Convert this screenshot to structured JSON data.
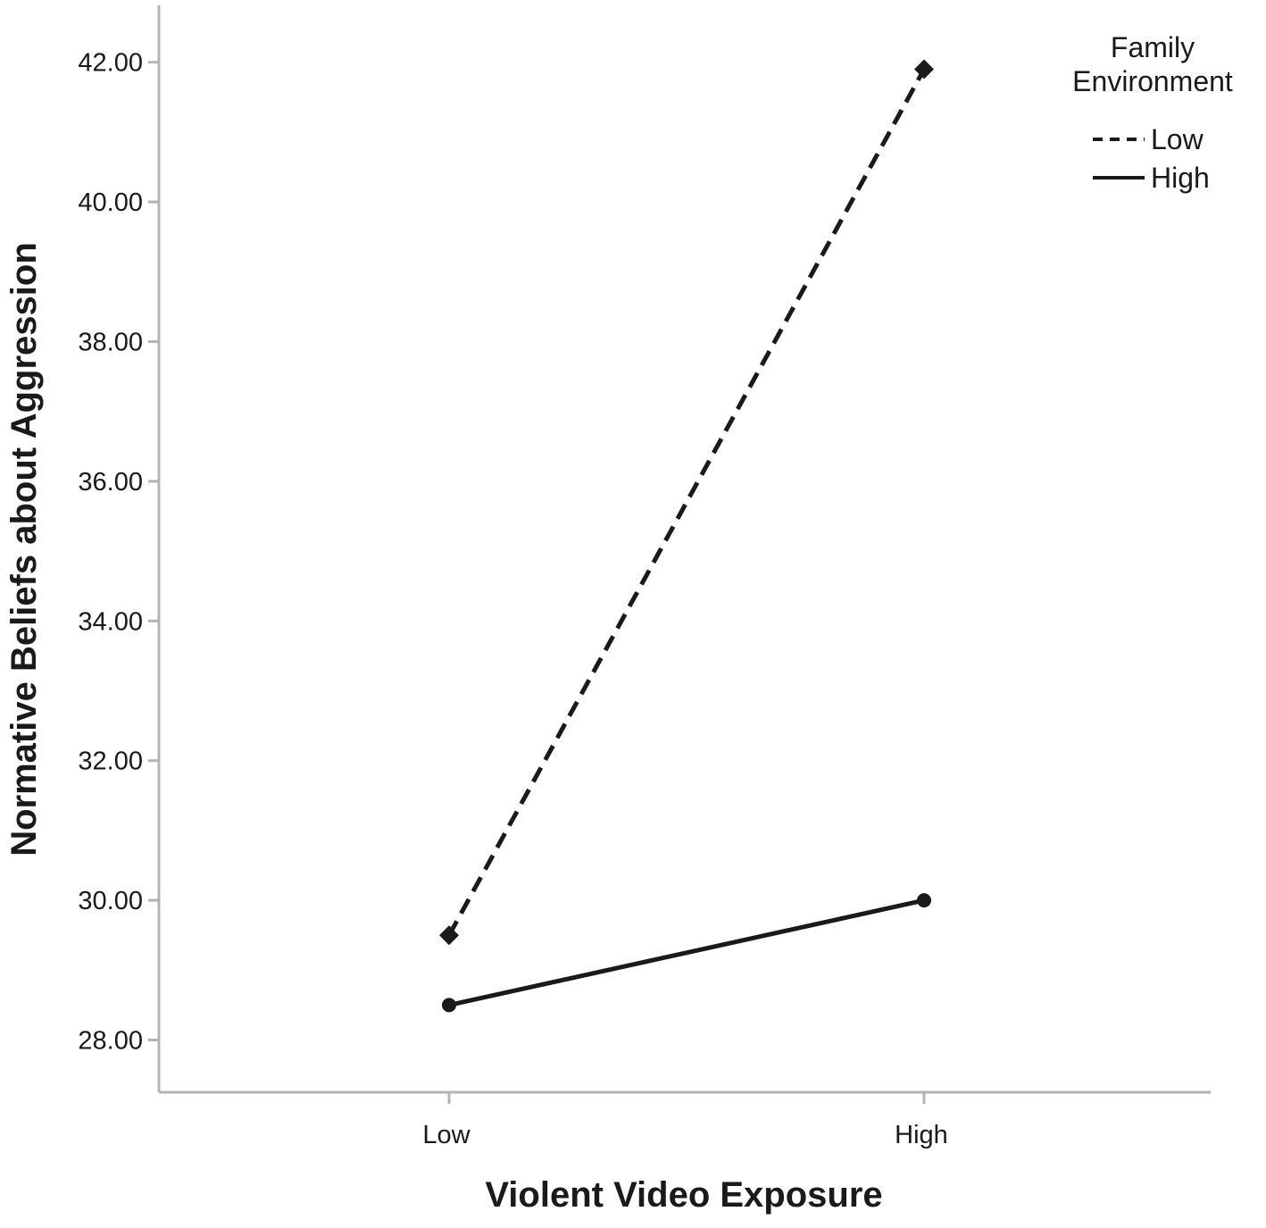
{
  "chart_data": {
    "type": "line",
    "title": "",
    "xlabel": "Violent Video Exposure",
    "ylabel": "Normative Beliefs about Aggression",
    "categories": [
      "Low",
      "High"
    ],
    "ylim": [
      27.4,
      42.8
    ],
    "yticks": [
      28,
      30,
      32,
      34,
      36,
      38,
      40,
      42
    ],
    "ytick_labels": [
      "28.00",
      "30.00",
      "32.00",
      "34.00",
      "36.00",
      "38.00",
      "40.00",
      "42.00"
    ],
    "grid": false,
    "legend": {
      "title_lines": [
        "Family",
        "Environment"
      ],
      "placement": "top-right"
    },
    "series": [
      {
        "name": "Low",
        "values": [
          29.5,
          41.9
        ],
        "line_style": "dashed",
        "marker": "diamond",
        "color": "#1a1a1a"
      },
      {
        "name": "High",
        "values": [
          28.5,
          30.0
        ],
        "line_style": "solid",
        "marker": "circle",
        "color": "#1a1a1a"
      }
    ],
    "colors": {
      "line": "#1a1a1a",
      "axis": "#b3b3b3",
      "background": "#ffffff"
    }
  }
}
